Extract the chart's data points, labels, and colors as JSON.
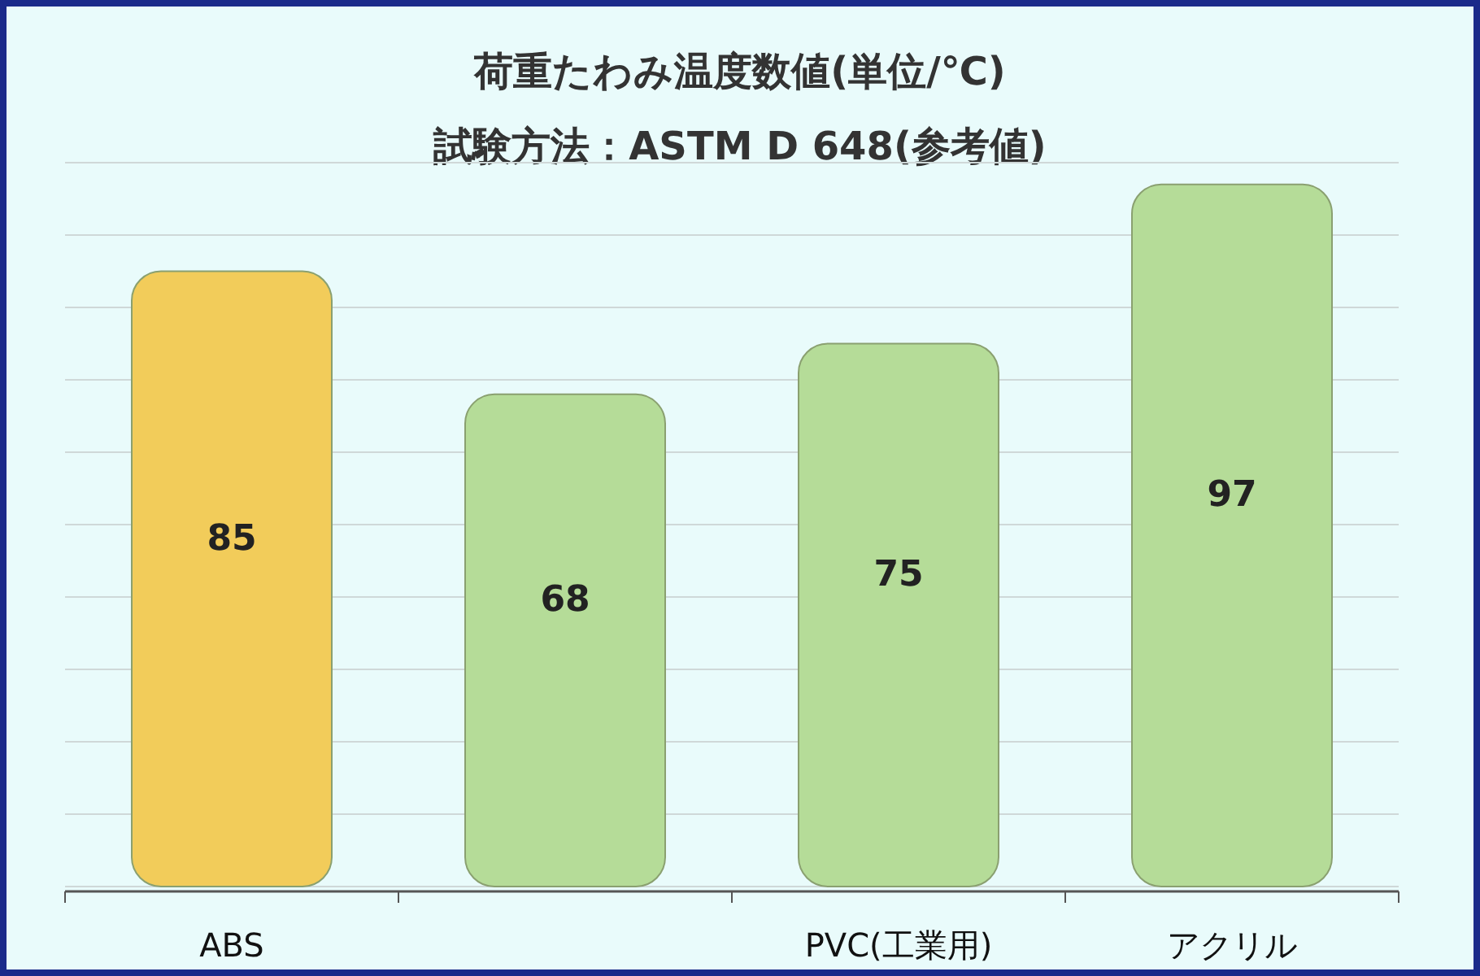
{
  "chart_data": {
    "type": "bar",
    "title": "荷重たわみ温度数値(単位/℃)",
    "subtitle": "試験方法：ASTM D 648(参考値)",
    "categories": [
      "ABS",
      null,
      "PVC(工業用)",
      "アクリル"
    ],
    "values": [
      85,
      68,
      75,
      97
    ],
    "colors": [
      "#f2cc5a",
      "#b5dc98",
      "#b5dc98",
      "#b5dc98"
    ],
    "ylim": [
      0,
      100
    ],
    "yticks": [
      {
        "value": 0,
        "label": null
      },
      {
        "value": 10,
        "label": null
      },
      {
        "value": 20,
        "label": null
      },
      {
        "value": 30,
        "label": null
      },
      {
        "value": 40,
        "label": null
      },
      {
        "value": 50,
        "label": null
      },
      {
        "value": 60,
        "label": null
      },
      {
        "value": 70,
        "label": null
      },
      {
        "value": 80,
        "label": null
      },
      {
        "value": 90,
        "label": null
      },
      {
        "value": 100,
        "label": null
      }
    ],
    "grid": true,
    "tick_labels": "x",
    "data_labels": true
  }
}
